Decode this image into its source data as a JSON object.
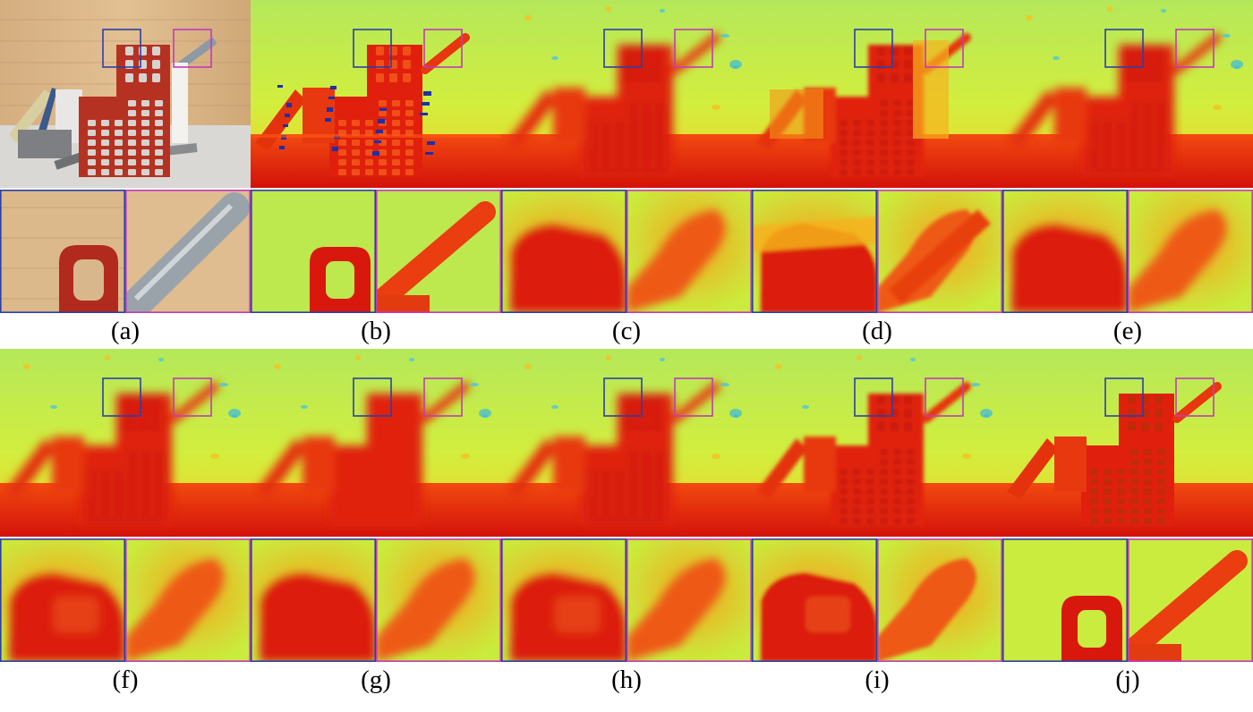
{
  "panels": [
    {
      "id": "a",
      "caption": "(a)",
      "kind": "rgb"
    },
    {
      "id": "b",
      "caption": "(b)",
      "kind": "ground-truth"
    },
    {
      "id": "c",
      "caption": "(c)",
      "kind": "blurry"
    },
    {
      "id": "d",
      "caption": "(d)",
      "kind": "artifact"
    },
    {
      "id": "e",
      "caption": "(e)",
      "kind": "blurry"
    },
    {
      "id": "f",
      "caption": "(f)",
      "kind": "blocky"
    },
    {
      "id": "g",
      "caption": "(g)",
      "kind": "noisy"
    },
    {
      "id": "h",
      "caption": "(h)",
      "kind": "blurry-edge"
    },
    {
      "id": "i",
      "caption": "(i)",
      "kind": "textured"
    },
    {
      "id": "j",
      "caption": "(j)",
      "kind": "sharp"
    }
  ],
  "colors": {
    "highlight_left_box": "#2c3fa8",
    "highlight_right_box": "#c23bb8",
    "depth_near": "#d81a0c",
    "depth_mid": "#f07b12",
    "depth_far": "#c9ef3b",
    "depth_background": "#9cdc6c",
    "wood": "#d8b487"
  }
}
